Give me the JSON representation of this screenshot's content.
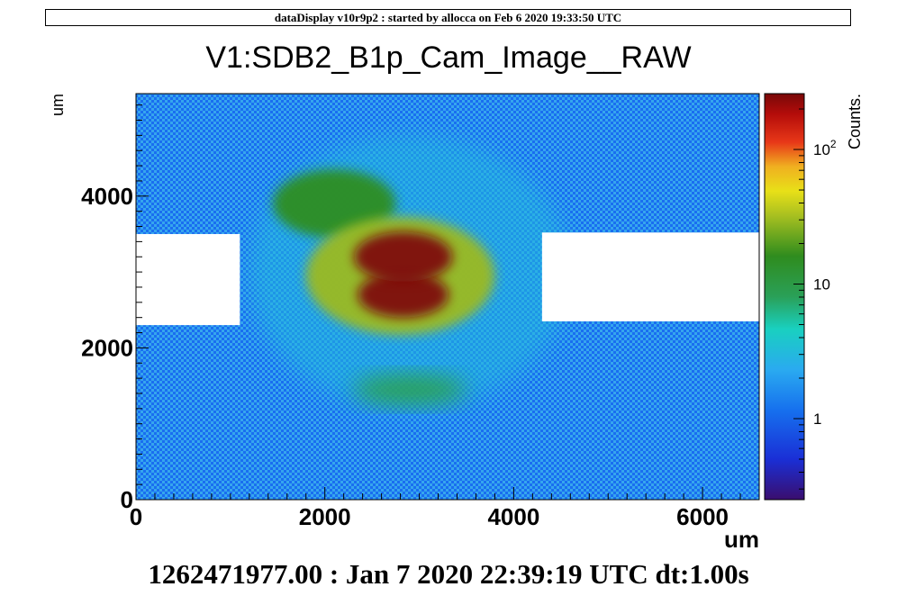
{
  "header": {
    "banner": "dataDisplay v10r9p2 : started by allocca on Feb  6 2020 19:33:50 UTC",
    "footer": "1262471977.00 : Jan  7 2020 22:39:19 UTC dt:1.00s"
  },
  "chart_data": {
    "type": "heatmap",
    "title": "V1:SDB2_B1p_Cam_Image__RAW",
    "xlabel": "um",
    "ylabel": "um",
    "zlabel": "Counts.",
    "xlim": [
      0,
      6600
    ],
    "ylim": [
      0,
      5350
    ],
    "zlim": [
      0.25,
      260
    ],
    "zscale": "log",
    "x_ticks": [
      {
        "value": 0,
        "label": "0"
      },
      {
        "value": 2000,
        "label": "2000"
      },
      {
        "value": 4000,
        "label": "4000"
      },
      {
        "value": 6000,
        "label": "6000"
      }
    ],
    "y_ticks": [
      {
        "value": 0,
        "label": "0"
      },
      {
        "value": 2000,
        "label": "2000"
      },
      {
        "value": 4000,
        "label": "4000"
      }
    ],
    "z_ticks": [
      {
        "value": 1,
        "label": "1"
      },
      {
        "value": 10,
        "label": "10"
      },
      {
        "value": 100,
        "label": "10",
        "sup": "2"
      }
    ],
    "background_counts": 1,
    "saturated_white_regions": [
      {
        "x": [
          0,
          1100
        ],
        "y": [
          2300,
          3500
        ]
      },
      {
        "x": [
          4300,
          6600
        ],
        "y": [
          2350,
          3520
        ]
      }
    ],
    "features": [
      {
        "name": "core-upper",
        "x": 2830,
        "y": 3200,
        "rx": 520,
        "ry": 330,
        "counts": 250
      },
      {
        "name": "core-lower",
        "x": 2830,
        "y": 2700,
        "rx": 480,
        "ry": 300,
        "counts": 250
      },
      {
        "name": "halo-inner",
        "x": 2800,
        "y": 2950,
        "rx": 1000,
        "ry": 780,
        "counts": 30
      },
      {
        "name": "arc-upper-left",
        "x": 2100,
        "y": 3900,
        "rx": 650,
        "ry": 450,
        "counts": 15
      },
      {
        "name": "arc-lower",
        "x": 2900,
        "y": 1450,
        "rx": 600,
        "ry": 200,
        "counts": 8
      },
      {
        "name": "outer-halo",
        "x": 2900,
        "y": 3000,
        "rx": 1700,
        "ry": 1800,
        "counts": 3
      }
    ]
  }
}
